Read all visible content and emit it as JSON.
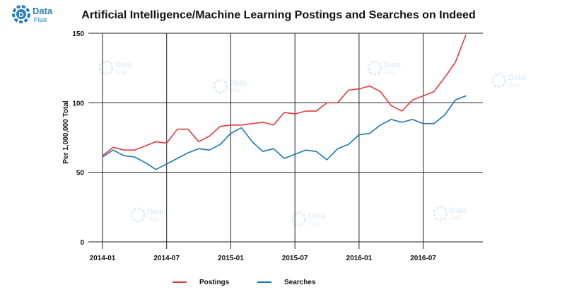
{
  "brand": {
    "name_line1": "Data",
    "name_line2": "Flair",
    "color": "#2a7ec2"
  },
  "chart_data": {
    "type": "line",
    "title": "Artificial Intelligence/Machine Learning Postings and Searches on Indeed",
    "xlabel": "",
    "ylabel": "Per 1,000,000 Total",
    "ylim": [
      0,
      150
    ],
    "yticks": [
      0,
      50,
      100,
      150
    ],
    "grid": true,
    "legend_position": "bottom-center",
    "x_tick_labels": [
      "2014-01",
      "2014-07",
      "2015-01",
      "2015-07",
      "2016-01",
      "2016-07"
    ],
    "x": [
      "2014-01",
      "2014-02",
      "2014-03",
      "2014-04",
      "2014-05",
      "2014-06",
      "2014-07",
      "2014-08",
      "2014-09",
      "2014-10",
      "2014-11",
      "2014-12",
      "2015-01",
      "2015-02",
      "2015-03",
      "2015-04",
      "2015-05",
      "2015-06",
      "2015-07",
      "2015-08",
      "2015-09",
      "2015-10",
      "2015-11",
      "2015-12",
      "2016-01",
      "2016-02",
      "2016-03",
      "2016-04",
      "2016-05",
      "2016-06",
      "2016-07",
      "2016-08",
      "2016-09",
      "2016-10",
      "2016-11"
    ],
    "series": [
      {
        "name": "Postings",
        "color": "#e03a3e",
        "values": [
          62,
          68,
          66,
          66,
          69,
          72,
          71,
          81,
          81,
          72,
          76,
          83,
          84,
          84,
          85,
          86,
          84,
          93,
          92,
          94,
          94,
          100,
          100,
          109,
          110,
          112,
          108,
          98,
          94,
          102,
          105,
          108,
          118,
          129,
          149
        ]
      },
      {
        "name": "Searches",
        "color": "#1a75b5",
        "values": [
          61,
          66,
          62,
          61,
          57,
          52,
          56,
          60,
          64,
          67,
          66,
          70,
          78,
          82,
          72,
          65,
          67,
          60,
          63,
          66,
          65,
          59,
          67,
          70,
          77,
          78,
          84,
          88,
          86,
          88,
          85,
          85,
          91,
          102,
          105
        ]
      }
    ]
  }
}
